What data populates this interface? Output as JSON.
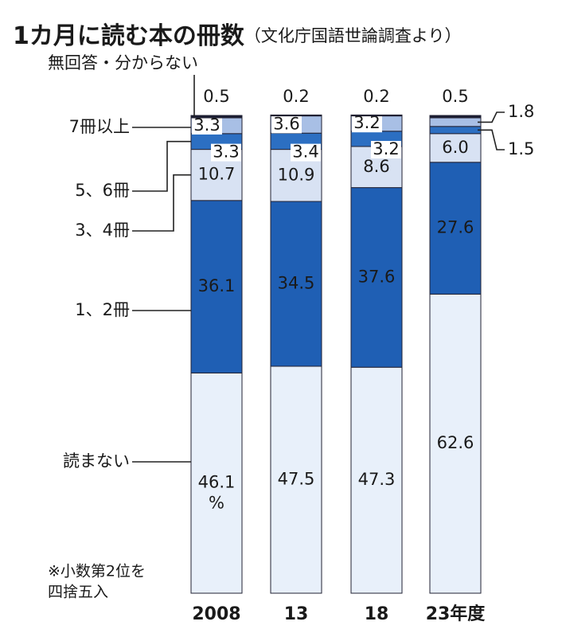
{
  "chart_data": {
    "type": "stacked_bar",
    "title": "1カ月に読む本の冊数",
    "subtitle": "（文化庁国語世論調査より）",
    "note": [
      "※小数第2位を",
      "四捨五入"
    ],
    "unit": "%",
    "categories": [
      "2008",
      "13",
      "18",
      "23年度"
    ],
    "ylim": [
      0,
      100
    ],
    "series": [
      {
        "name": "読まない",
        "color": "#e8f0fa",
        "values": [
          46.1,
          47.5,
          47.3,
          62.6
        ]
      },
      {
        "name": "1、2冊",
        "color": "#1f5fb4",
        "values": [
          36.1,
          34.5,
          37.6,
          27.6
        ]
      },
      {
        "name": "3、4冊",
        "color": "#d8e2f3",
        "values": [
          10.7,
          10.9,
          8.6,
          6.0
        ],
        "value_labels": [
          "10.7",
          "10.9",
          "8.6",
          "6.0"
        ]
      },
      {
        "name": "5、6冊",
        "color": "#2c6fc2",
        "values": [
          3.3,
          3.4,
          3.2,
          1.5
        ]
      },
      {
        "name": "7冊以上",
        "color": "#a8bfe5",
        "values": [
          3.3,
          3.6,
          3.2,
          1.8
        ]
      },
      {
        "name": "無回答・分からない",
        "color": "#1b1d33",
        "values": [
          0.5,
          0.2,
          0.2,
          0.5
        ]
      }
    ]
  }
}
